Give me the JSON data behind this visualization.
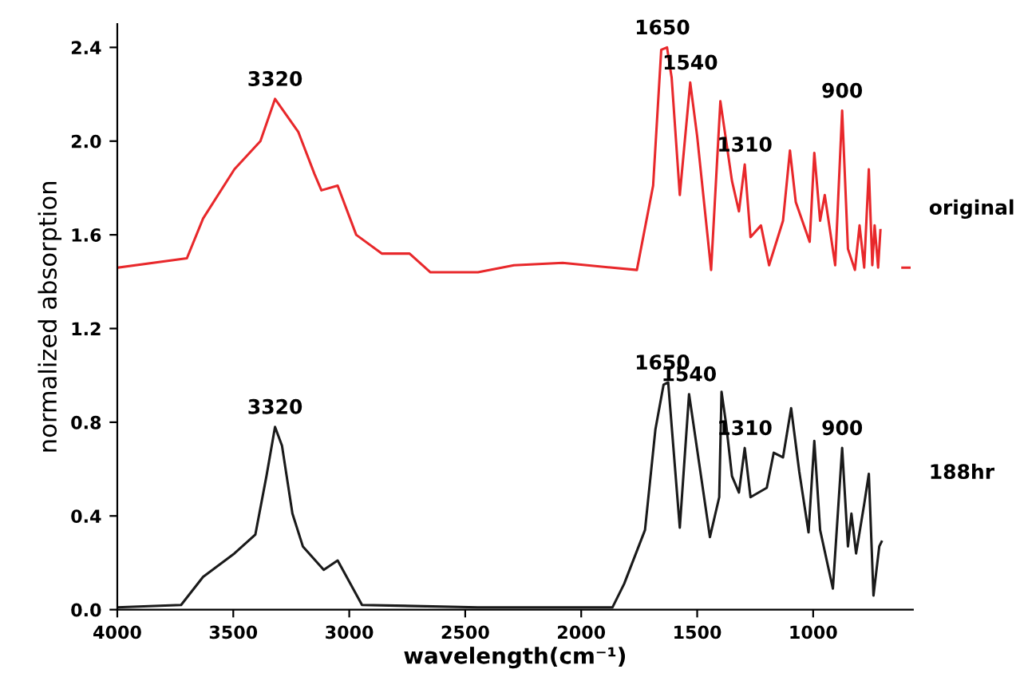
{
  "chart_data": {
    "type": "line",
    "xlabel": "wavelength(cm⁻¹)",
    "ylabel": "normalized absorption",
    "xlim": [
      4000,
      570
    ],
    "xticks": [
      4000,
      3500,
      3000,
      2500,
      2000,
      1500,
      1000
    ],
    "ylim": [
      0,
      2.5
    ],
    "yticks": [
      {
        "value": 0,
        "label": "0.0"
      },
      0.4,
      0.8,
      1.2,
      1.6,
      {
        "value": 2.0,
        "label": "2.0"
      },
      2.4
    ],
    "grid": false,
    "legend": false,
    "marker": "none",
    "line_style": "solid",
    "series": [
      {
        "name": "original",
        "color": "#e8282b",
        "x": [
          4000,
          3700,
          3630,
          3495,
          3383,
          3320,
          3220,
          3150,
          3120,
          3050,
          2970,
          2860,
          2740,
          2650,
          2445,
          2290,
          2080,
          1760,
          1690,
          1655,
          1630,
          1610,
          1575,
          1530,
          1500,
          1440,
          1400,
          1350,
          1320,
          1295,
          1270,
          1225,
          1190,
          1130,
          1100,
          1075,
          1015,
          995,
          970,
          950,
          905,
          875,
          850,
          820,
          800,
          780,
          760,
          745,
          735,
          720,
          710,
          650,
          615,
          585
        ],
        "values": [
          1.46,
          1.5,
          1.67,
          1.88,
          2.0,
          2.18,
          2.04,
          1.86,
          1.79,
          1.81,
          1.6,
          1.52,
          1.52,
          1.44,
          1.44,
          1.47,
          1.48,
          1.45,
          1.81,
          2.39,
          2.4,
          2.27,
          1.77,
          2.25,
          2.02,
          1.45,
          2.17,
          1.83,
          1.7,
          1.9,
          1.59,
          1.64,
          1.47,
          1.66,
          1.96,
          1.74,
          1.57,
          1.95,
          1.66,
          1.77,
          1.47,
          2.13,
          1.54,
          1.45,
          1.64,
          1.46,
          1.88,
          1.47,
          1.64,
          1.46,
          1.62,
          null,
          1.46,
          1.46
        ]
      },
      {
        "name": "188hr",
        "color": "#1a1a1a",
        "x": [
          4000,
          3725,
          3630,
          3495,
          3405,
          3357,
          3320,
          3290,
          3245,
          3200,
          3110,
          3050,
          2945,
          2445,
          2310,
          1865,
          1815,
          1725,
          1680,
          1645,
          1625,
          1575,
          1535,
          1445,
          1405,
          1395,
          1375,
          1350,
          1320,
          1295,
          1270,
          1200,
          1170,
          1130,
          1095,
          1060,
          1020,
          995,
          970,
          915,
          875,
          850,
          835,
          815,
          780,
          760,
          740,
          715,
          705
        ],
        "values": [
          0.01,
          0.02,
          0.14,
          0.24,
          0.32,
          0.57,
          0.78,
          0.7,
          0.41,
          0.27,
          0.17,
          0.21,
          0.02,
          0.01,
          0.01,
          0.01,
          0.11,
          0.34,
          0.77,
          0.96,
          0.97,
          0.35,
          0.92,
          0.31,
          0.48,
          0.93,
          0.79,
          0.57,
          0.5,
          0.69,
          0.48,
          0.52,
          0.67,
          0.65,
          0.86,
          0.59,
          0.33,
          0.72,
          0.34,
          0.09,
          0.69,
          0.27,
          0.41,
          0.24,
          0.45,
          0.58,
          0.06,
          0.27,
          0.29
        ]
      }
    ],
    "annotations": [
      {
        "text": "3320",
        "x": 3320,
        "y": 2.18
      },
      {
        "text": "1650",
        "x": 1650,
        "y": 2.4
      },
      {
        "text": "1540",
        "x": 1530,
        "y": 2.25
      },
      {
        "text": "1310",
        "x": 1295,
        "y": 1.9
      },
      {
        "text": "900",
        "x": 875,
        "y": 2.13
      },
      {
        "text": "3320",
        "x": 3320,
        "y": 0.78
      },
      {
        "text": "1650",
        "x": 1650,
        "y": 0.97
      },
      {
        "text": "1540",
        "x": 1535,
        "y": 0.92
      },
      {
        "text": "1310",
        "x": 1295,
        "y": 0.69
      },
      {
        "text": "900",
        "x": 875,
        "y": 0.69
      }
    ]
  }
}
